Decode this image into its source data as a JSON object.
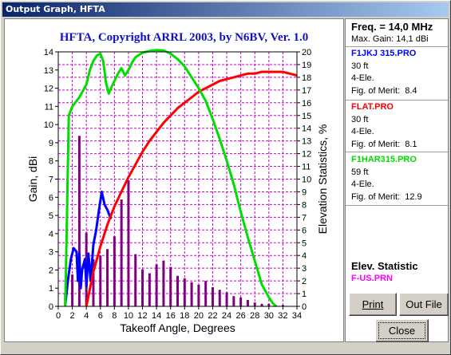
{
  "window": {
    "title": "Output Graph, HFTA"
  },
  "colors": {
    "series1": "#0000ff",
    "series2": "#ff0000",
    "series3": "#00dd00",
    "statistics": "#800080",
    "grid": "#cc00cc"
  },
  "info": {
    "freq_label": "Freq. = 14,0 MHz",
    "max_gain_label": "Max. Gain: 14,1 dBi",
    "entries": [
      {
        "name": "F1JKJ 315.PRO",
        "color": "#0000ff",
        "height": "30 ft",
        "elements": "4-Ele.",
        "fom_label": "Fig. of Merit:",
        "fom": "8.4"
      },
      {
        "name": "FLAT.PRO",
        "color": "#ff0000",
        "height": "30 ft",
        "elements": "4-Ele.",
        "fom_label": "Fig. of Merit:",
        "fom": "8.1"
      },
      {
        "name": "F1HAR315.PRO",
        "color": "#00dd00",
        "height": "59 ft",
        "elements": "4-Ele.",
        "fom_label": "Fig. of Merit:",
        "fom": "12.9"
      }
    ],
    "elev_title": "Elev. Statistic",
    "elev_file": "F-US.PRN"
  },
  "buttons": {
    "print": "Print",
    "outfile": "Out File",
    "close": "Close"
  },
  "chart_data": {
    "type": "line",
    "title": "HFTA, Copyright ARRL 2003, by N6BV, Ver. 1.0",
    "xlabel": "Takeoff Angle, Degrees",
    "ylabel": "Gain, dBi",
    "y2label": "Elevation Statistics, %",
    "xlim": [
      0,
      34
    ],
    "ylim": [
      0,
      14
    ],
    "y2lim": [
      0,
      20
    ],
    "xticks": [
      0,
      2,
      4,
      6,
      8,
      10,
      12,
      14,
      16,
      18,
      20,
      22,
      24,
      26,
      28,
      30,
      32,
      34
    ],
    "yticks": [
      0,
      1,
      2,
      3,
      4,
      5,
      6,
      7,
      8,
      9,
      10,
      11,
      12,
      13,
      14
    ],
    "y2ticks": [
      0,
      1,
      2,
      3,
      4,
      5,
      6,
      7,
      8,
      9,
      10,
      11,
      12,
      13,
      14,
      15,
      16,
      17,
      18,
      19,
      20
    ],
    "grid": true,
    "series": [
      {
        "name": "F1JKJ 315.PRO",
        "color": "#0000ff",
        "x": [
          1,
          1.4,
          1.8,
          2.2,
          2.6,
          2.8,
          3.0,
          3.2,
          3.4,
          3.8,
          4.0,
          4.3,
          4.6,
          5.0,
          5.4,
          5.8,
          6.2,
          6.6,
          7.0,
          7.5
        ],
        "y": [
          0.1,
          1.5,
          2.6,
          3.2,
          3.0,
          1.4,
          2.9,
          1.0,
          2.0,
          2.6,
          1.1,
          2.9,
          1.4,
          3.4,
          4.2,
          5.3,
          6.3,
          5.6,
          5.3,
          4.8
        ]
      },
      {
        "name": "FLAT.PRO",
        "color": "#ff0000",
        "x": [
          4,
          5,
          6,
          7,
          8,
          9,
          10,
          11,
          12,
          13,
          14,
          15,
          16,
          17,
          18,
          19,
          20,
          21,
          22,
          23,
          24,
          25,
          26,
          27,
          28,
          29,
          30,
          31,
          32,
          33,
          34
        ],
        "y": [
          0,
          1.9,
          3.3,
          4.5,
          5.5,
          6.3,
          7.1,
          7.8,
          8.5,
          9.1,
          9.6,
          10.1,
          10.5,
          10.9,
          11.2,
          11.5,
          11.8,
          12.0,
          12.2,
          12.4,
          12.5,
          12.6,
          12.7,
          12.8,
          12.8,
          12.9,
          12.9,
          12.9,
          12.9,
          12.8,
          12.7
        ]
      },
      {
        "name": "F1HAR315.PRO",
        "color": "#00dd00",
        "x": [
          1,
          1.5,
          2,
          3,
          4,
          4.5,
          5,
          5.5,
          6,
          6.4,
          6.8,
          7.2,
          7.5,
          8,
          8.5,
          9,
          9.5,
          10,
          10.5,
          11,
          12,
          13,
          14,
          15,
          16,
          17,
          18,
          19,
          20,
          21,
          22,
          23,
          24,
          25,
          26,
          27,
          28,
          29,
          30,
          30.5,
          31
        ],
        "y": [
          0,
          10.5,
          11.0,
          11.5,
          12.2,
          13.0,
          13.5,
          13.8,
          13.9,
          13.5,
          12.3,
          11.7,
          12.0,
          12.4,
          12.8,
          13.1,
          12.7,
          13.0,
          13.4,
          13.7,
          13.95,
          14.05,
          14.1,
          14.08,
          13.9,
          13.6,
          13.2,
          12.6,
          12.0,
          11.3,
          10.3,
          9.2,
          8.0,
          6.7,
          5.2,
          3.8,
          2.5,
          1.2,
          0.5,
          0.2,
          0
        ]
      }
    ],
    "statistics": {
      "name": "F-US.PRN",
      "color": "#800080",
      "angles": [
        1,
        2,
        3,
        4,
        5,
        6,
        7,
        8,
        9,
        10,
        11,
        12,
        13,
        14,
        15,
        16,
        17,
        18,
        19,
        20,
        21,
        22,
        23,
        24,
        25,
        26,
        27,
        28,
        29,
        30,
        31,
        32
      ],
      "values": [
        1,
        2.5,
        13.4,
        5.8,
        3.7,
        4.0,
        4.5,
        5.5,
        8.4,
        9.9,
        4.1,
        2.9,
        2.6,
        3.3,
        3.6,
        3.1,
        2.4,
        2.2,
        1.9,
        1.7,
        2.0,
        1.5,
        1.3,
        1.1,
        0.8,
        0.7,
        0.5,
        0.3,
        0.2,
        0.2,
        0.1,
        0.1
      ]
    }
  }
}
